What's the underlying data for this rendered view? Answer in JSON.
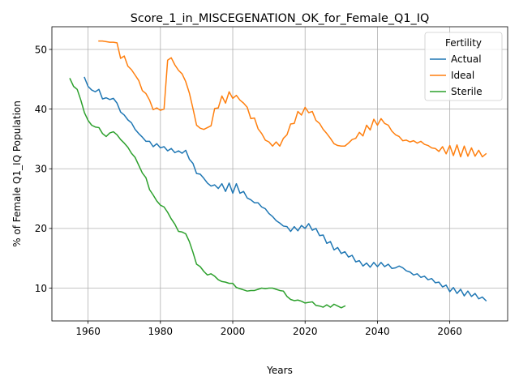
{
  "chart_data": {
    "type": "line",
    "title": "Score_1_in_MISCEGENATION_OK_for_Female_Q1_IQ",
    "xlabel": "Years",
    "ylabel": "% of Female Q1_IQ Population",
    "xlim": [
      1950,
      2076
    ],
    "ylim": [
      4.5,
      53.8
    ],
    "xticks": [
      1960,
      1980,
      2000,
      2020,
      2040,
      2060
    ],
    "yticks": [
      10,
      20,
      30,
      40,
      50
    ],
    "grid": true,
    "legend": {
      "title": "Fertility",
      "placement": "top-right"
    },
    "series": [
      {
        "name": "Actual",
        "color": "#1f77b4",
        "x": [
          1959,
          1960,
          1961,
          1962,
          1963,
          1964,
          1965,
          1966,
          1967,
          1968,
          1969,
          1970,
          1971,
          1972,
          1973,
          1974,
          1975,
          1976,
          1977,
          1978,
          1979,
          1980,
          1981,
          1982,
          1983,
          1984,
          1985,
          1986,
          1987,
          1988,
          1989,
          1990,
          1991,
          1992,
          1993,
          1994,
          1995,
          1996,
          1997,
          1998,
          1999,
          2000,
          2001,
          2002,
          2003,
          2004,
          2005,
          2006,
          2007,
          2008,
          2009,
          2010,
          2011,
          2012,
          2013,
          2014,
          2015,
          2016,
          2017,
          2018,
          2019,
          2020,
          2021,
          2022,
          2023,
          2024,
          2025,
          2026,
          2027,
          2028,
          2029,
          2030,
          2031,
          2032,
          2033,
          2034,
          2035,
          2036,
          2037,
          2038,
          2039,
          2040,
          2041,
          2042,
          2043,
          2044,
          2045,
          2046,
          2047,
          2048,
          2049,
          2050,
          2051,
          2052,
          2053,
          2054,
          2055,
          2056,
          2057,
          2058,
          2059,
          2060,
          2061,
          2062,
          2063,
          2064,
          2065,
          2066,
          2067,
          2068,
          2069,
          2070
        ],
        "values": [
          45.3,
          43.8,
          43.2,
          42.9,
          43.3,
          41.7,
          41.9,
          41.6,
          41.8,
          41.0,
          39.5,
          39.0,
          38.2,
          37.7,
          36.6,
          35.9,
          35.3,
          34.6,
          34.6,
          33.7,
          34.2,
          33.5,
          33.7,
          33.0,
          33.4,
          32.7,
          33.0,
          32.6,
          33.1,
          31.6,
          30.9,
          29.2,
          29.1,
          28.4,
          27.6,
          27.1,
          27.3,
          26.7,
          27.5,
          26.2,
          27.6,
          25.9,
          27.5,
          25.9,
          26.2,
          25.1,
          24.8,
          24.3,
          24.3,
          23.6,
          23.3,
          22.5,
          22.0,
          21.3,
          20.9,
          20.4,
          20.3,
          19.5,
          20.3,
          19.6,
          20.5,
          20.0,
          20.8,
          19.7,
          20.0,
          18.8,
          18.9,
          17.5,
          17.8,
          16.4,
          16.8,
          15.8,
          16.1,
          15.2,
          15.5,
          14.4,
          14.6,
          13.7,
          14.2,
          13.5,
          14.3,
          13.6,
          14.3,
          13.6,
          14.0,
          13.3,
          13.4,
          13.7,
          13.4,
          12.9,
          12.7,
          12.2,
          12.4,
          11.8,
          12.0,
          11.4,
          11.6,
          10.9,
          11.0,
          10.2,
          10.5,
          9.4,
          10.1,
          9.1,
          9.8,
          8.7,
          9.5,
          8.6,
          9.1,
          8.2,
          8.5,
          7.9
        ]
      },
      {
        "name": "Ideal",
        "color": "#ff7f0e",
        "x": [
          1963,
          1964,
          1965,
          1966,
          1967,
          1968,
          1969,
          1970,
          1971,
          1972,
          1973,
          1974,
          1975,
          1976,
          1977,
          1978,
          1979,
          1980,
          1981,
          1982,
          1983,
          1984,
          1985,
          1986,
          1987,
          1988,
          1989,
          1990,
          1991,
          1992,
          1993,
          1994,
          1995,
          1996,
          1997,
          1998,
          1999,
          2000,
          2001,
          2002,
          2003,
          2004,
          2005,
          2006,
          2007,
          2008,
          2009,
          2010,
          2011,
          2012,
          2013,
          2014,
          2015,
          2016,
          2017,
          2018,
          2019,
          2020,
          2021,
          2022,
          2023,
          2024,
          2025,
          2026,
          2027,
          2028,
          2029,
          2030,
          2031,
          2032,
          2033,
          2034,
          2035,
          2036,
          2037,
          2038,
          2039,
          2040,
          2041,
          2042,
          2043,
          2044,
          2045,
          2046,
          2047,
          2048,
          2049,
          2050,
          2051,
          2052,
          2053,
          2054,
          2055,
          2056,
          2057,
          2058,
          2059,
          2060,
          2061,
          2062,
          2063,
          2064,
          2065,
          2066,
          2067,
          2068,
          2069,
          2070
        ],
        "values": [
          51.4,
          51.4,
          51.3,
          51.2,
          51.2,
          51.1,
          48.5,
          48.9,
          47.2,
          46.6,
          45.7,
          44.8,
          43.1,
          42.6,
          41.5,
          39.9,
          40.2,
          39.8,
          40.0,
          48.2,
          48.6,
          47.4,
          46.5,
          45.9,
          44.6,
          42.7,
          40.1,
          37.3,
          36.8,
          36.6,
          36.9,
          37.2,
          40.1,
          40.2,
          42.2,
          41.0,
          42.9,
          41.8,
          42.3,
          41.5,
          41.0,
          40.3,
          38.4,
          38.5,
          36.7,
          35.9,
          34.8,
          34.5,
          33.8,
          34.5,
          33.8,
          35.1,
          35.7,
          37.5,
          37.6,
          39.6,
          39.0,
          40.3,
          39.4,
          39.6,
          38.1,
          37.6,
          36.6,
          35.9,
          35.1,
          34.2,
          33.9,
          33.8,
          33.8,
          34.3,
          34.9,
          35.1,
          36.1,
          35.5,
          37.3,
          36.5,
          38.3,
          37.3,
          38.4,
          37.6,
          37.3,
          36.3,
          35.7,
          35.4,
          34.7,
          34.8,
          34.5,
          34.7,
          34.3,
          34.6,
          34.1,
          33.9,
          33.5,
          33.4,
          32.9,
          33.7,
          32.5,
          33.9,
          32.2,
          34.0,
          32.0,
          33.8,
          32.1,
          33.5,
          32.1,
          33.1,
          32.0,
          32.5
        ]
      },
      {
        "name": "Sterile",
        "color": "#2ca02c",
        "x": [
          1955,
          1956,
          1957,
          1958,
          1959,
          1960,
          1961,
          1962,
          1963,
          1964,
          1965,
          1966,
          1967,
          1968,
          1969,
          1970,
          1971,
          1972,
          1973,
          1974,
          1975,
          1976,
          1977,
          1978,
          1979,
          1980,
          1981,
          1982,
          1983,
          1984,
          1985,
          1986,
          1987,
          1988,
          1989,
          1990,
          1991,
          1992,
          1993,
          1994,
          1995,
          1996,
          1997,
          1998,
          1999,
          2000,
          2001,
          2002,
          2003,
          2004,
          2005,
          2006,
          2007,
          2008,
          2009,
          2010,
          2011,
          2012,
          2013,
          2014,
          2015,
          2016,
          2017,
          2018,
          2019,
          2020,
          2021,
          2022,
          2023,
          2024,
          2025,
          2026,
          2027,
          2028,
          2029,
          2030,
          2031
        ],
        "values": [
          45.1,
          43.8,
          43.3,
          41.5,
          39.4,
          38.1,
          37.3,
          37.0,
          36.9,
          35.9,
          35.4,
          36.0,
          36.2,
          35.7,
          34.9,
          34.3,
          33.6,
          32.6,
          31.9,
          30.6,
          29.3,
          28.5,
          26.5,
          25.6,
          24.6,
          23.9,
          23.6,
          22.7,
          21.6,
          20.7,
          19.5,
          19.4,
          19.1,
          17.8,
          16.0,
          14.0,
          13.6,
          12.8,
          12.2,
          12.4,
          12.0,
          11.4,
          11.1,
          11.0,
          10.8,
          10.8,
          10.1,
          9.9,
          9.7,
          9.5,
          9.6,
          9.6,
          9.8,
          10.0,
          9.9,
          10.0,
          10.0,
          9.8,
          9.6,
          9.5,
          8.6,
          8.1,
          7.9,
          8.0,
          7.8,
          7.5,
          7.6,
          7.7,
          7.1,
          7.0,
          6.8,
          7.2,
          6.8,
          7.3,
          7.0,
          6.7,
          7.0
        ]
      }
    ]
  }
}
